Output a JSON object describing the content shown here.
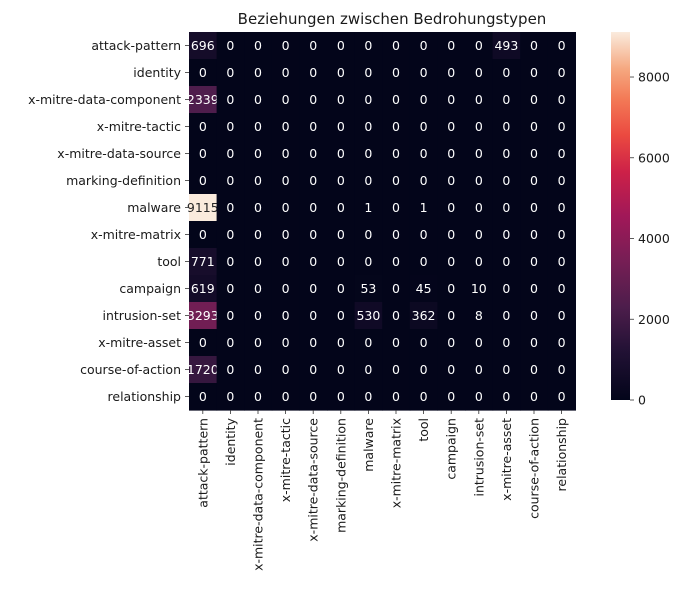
{
  "chart_data": {
    "type": "heatmap",
    "title": "Beziehungen zwischen Bedrohungstypen",
    "rows": [
      "attack-pattern",
      "identity",
      "x-mitre-data-component",
      "x-mitre-tactic",
      "x-mitre-data-source",
      "marking-definition",
      "malware",
      "x-mitre-matrix",
      "tool",
      "campaign",
      "intrusion-set",
      "x-mitre-asset",
      "course-of-action",
      "relationship"
    ],
    "columns": [
      "attack-pattern",
      "identity",
      "x-mitre-data-component",
      "x-mitre-tactic",
      "x-mitre-data-source",
      "marking-definition",
      "malware",
      "x-mitre-matrix",
      "tool",
      "campaign",
      "intrusion-set",
      "x-mitre-asset",
      "course-of-action",
      "relationship"
    ],
    "values": [
      [
        696,
        0,
        0,
        0,
        0,
        0,
        0,
        0,
        0,
        0,
        0,
        493,
        0,
        0
      ],
      [
        0,
        0,
        0,
        0,
        0,
        0,
        0,
        0,
        0,
        0,
        0,
        0,
        0,
        0
      ],
      [
        2339,
        0,
        0,
        0,
        0,
        0,
        0,
        0,
        0,
        0,
        0,
        0,
        0,
        0
      ],
      [
        0,
        0,
        0,
        0,
        0,
        0,
        0,
        0,
        0,
        0,
        0,
        0,
        0,
        0
      ],
      [
        0,
        0,
        0,
        0,
        0,
        0,
        0,
        0,
        0,
        0,
        0,
        0,
        0,
        0
      ],
      [
        0,
        0,
        0,
        0,
        0,
        0,
        0,
        0,
        0,
        0,
        0,
        0,
        0,
        0
      ],
      [
        9115,
        0,
        0,
        0,
        0,
        0,
        1,
        0,
        1,
        0,
        0,
        0,
        0,
        0
      ],
      [
        0,
        0,
        0,
        0,
        0,
        0,
        0,
        0,
        0,
        0,
        0,
        0,
        0,
        0
      ],
      [
        771,
        0,
        0,
        0,
        0,
        0,
        0,
        0,
        0,
        0,
        0,
        0,
        0,
        0
      ],
      [
        619,
        0,
        0,
        0,
        0,
        0,
        53,
        0,
        45,
        0,
        10,
        0,
        0,
        0
      ],
      [
        3293,
        0,
        0,
        0,
        0,
        0,
        530,
        0,
        362,
        0,
        8,
        0,
        0,
        0
      ],
      [
        0,
        0,
        0,
        0,
        0,
        0,
        0,
        0,
        0,
        0,
        0,
        0,
        0,
        0
      ],
      [
        1720,
        0,
        0,
        0,
        0,
        0,
        0,
        0,
        0,
        0,
        0,
        0,
        0,
        0
      ],
      [
        0,
        0,
        0,
        0,
        0,
        0,
        0,
        0,
        0,
        0,
        0,
        0,
        0,
        0
      ]
    ],
    "colormap": "rocket",
    "vmin": 0,
    "vmax": 9115,
    "colorbar_ticks": [
      0,
      2000,
      4000,
      6000,
      8000
    ]
  }
}
